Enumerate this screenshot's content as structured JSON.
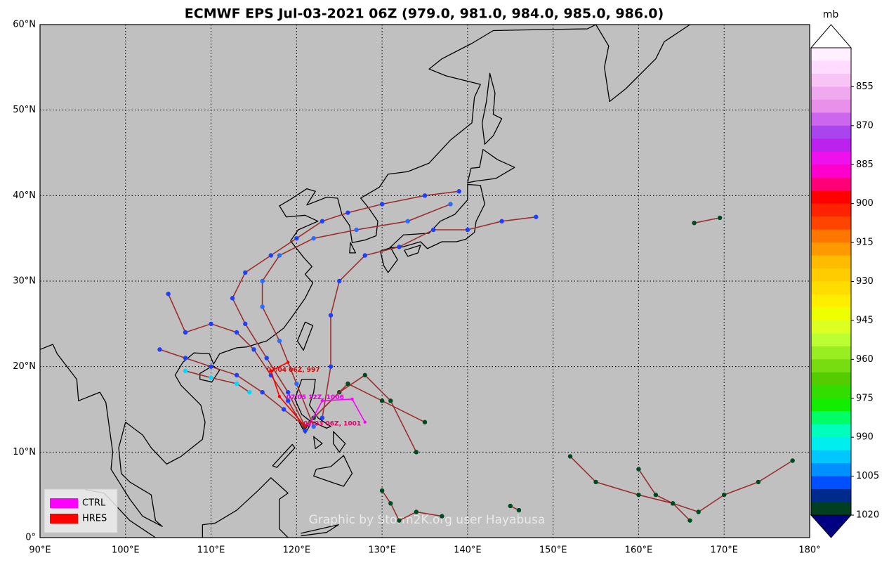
{
  "chart_data": {
    "type": "map",
    "title": "ECMWF EPS Jul-03-2021 06Z (979.0, 981.0, 984.0, 985.0, 986.0)",
    "xlim": [
      90,
      180
    ],
    "ylim": [
      0,
      60
    ],
    "xticks": [
      {
        "value": 90,
        "label": "90°E"
      },
      {
        "value": 100,
        "label": "100°E"
      },
      {
        "value": 110,
        "label": "110°E"
      },
      {
        "value": 120,
        "label": "120°E"
      },
      {
        "value": 130,
        "label": "130°E"
      },
      {
        "value": 140,
        "label": "140°E"
      },
      {
        "value": 150,
        "label": "150°E"
      },
      {
        "value": 160,
        "label": "160°E"
      },
      {
        "value": 170,
        "label": "170°E"
      },
      {
        "value": 180,
        "label": "180°"
      }
    ],
    "yticks": [
      {
        "value": 0,
        "label": "0°"
      },
      {
        "value": 10,
        "label": "10°N"
      },
      {
        "value": 20,
        "label": "20°N"
      },
      {
        "value": 30,
        "label": "30°N"
      },
      {
        "value": 40,
        "label": "40°N"
      },
      {
        "value": 50,
        "label": "50°N"
      },
      {
        "value": 60,
        "label": "60°N"
      }
    ],
    "grid": true,
    "track_line_color": "#9b2f2f",
    "tracks": [
      {
        "color": "#1f3fff",
        "lon": [
          121,
          118.5,
          116,
          113,
          110,
          107,
          104
        ],
        "lat": [
          13,
          15,
          17,
          19,
          20,
          21,
          22
        ]
      },
      {
        "color": "#1f3fff",
        "lon": [
          121,
          119,
          117,
          115,
          113,
          110,
          107,
          105
        ],
        "lat": [
          12.5,
          16,
          19,
          22,
          24,
          25,
          24,
          28.5
        ]
      },
      {
        "color": "#1f3fff",
        "lon": [
          121,
          119,
          116.5,
          114,
          112.5,
          114,
          117,
          120,
          123,
          126,
          130,
          135,
          139
        ],
        "lat": [
          13,
          17,
          21,
          25,
          28,
          31,
          33,
          35,
          37,
          38,
          39,
          40,
          40.5
        ]
      },
      {
        "color": "#2a6cff",
        "lon": [
          122,
          120,
          118,
          116,
          116,
          118,
          122,
          127,
          133,
          138
        ],
        "lat": [
          13,
          18,
          23,
          27,
          30,
          33,
          35,
          36,
          37,
          39
        ]
      },
      {
        "color": "#1f3fff",
        "lon": [
          123,
          124,
          124,
          125,
          128,
          132,
          136,
          140,
          144,
          148
        ],
        "lat": [
          14,
          20,
          26,
          30,
          33,
          34,
          36,
          36,
          37,
          37.5
        ]
      },
      {
        "color": "#004a20",
        "lon": [
          121,
          125,
          128,
          131,
          134
        ],
        "lat": [
          13,
          17,
          19,
          16,
          10
        ]
      },
      {
        "color": "#004a20",
        "lon": [
          122,
          126,
          130,
          135
        ],
        "lat": [
          14,
          18,
          16,
          13.5
        ]
      },
      {
        "color": "#004a20",
        "lon": [
          166.5,
          169.5
        ],
        "lat": [
          36.8,
          37.4
        ]
      },
      {
        "color": "#004a20",
        "lon": [
          152,
          155,
          160,
          164,
          167,
          170,
          174,
          178
        ],
        "lat": [
          9.5,
          6.5,
          5,
          4,
          3,
          5,
          6.5,
          9
        ]
      },
      {
        "color": "#004a20",
        "lon": [
          130,
          131,
          132,
          134,
          137
        ],
        "lat": [
          5.5,
          4,
          2,
          3,
          2.5
        ]
      },
      {
        "color": "#00d8ff",
        "lon": [
          107,
          110,
          113,
          114.5
        ],
        "lat": [
          19.5,
          18.7,
          18,
          17
        ]
      },
      {
        "color": "#004a20",
        "lon": [
          160,
          162,
          164,
          166
        ],
        "lat": [
          8,
          5,
          4,
          2
        ]
      },
      {
        "color": "#004a20",
        "lon": [
          145,
          146
        ],
        "lat": [
          3.7,
          3.2
        ]
      }
    ],
    "series": [
      {
        "name": "CTRL",
        "color": "#ff00ff",
        "lon": [
          121.5,
          123,
          126.5,
          128
        ],
        "lat": [
          13.2,
          16,
          16.2,
          13.5
        ]
      },
      {
        "name": "HRES",
        "color": "#ff0000",
        "lon": [
          121,
          118,
          117,
          119
        ],
        "lat": [
          13,
          16.5,
          19.5,
          20.5
        ]
      }
    ],
    "legend": "lower left",
    "annotations": [
      {
        "text": "07/04 06Z, 997",
        "color": "#e00000",
        "lon": 116.5,
        "lat": 19.6
      },
      {
        "text": "07/05 12Z, 1006",
        "color": "#e000e0",
        "lon": 118.8,
        "lat": 16.4
      },
      {
        "text": "07/03 06Z, 1001",
        "color": "#e0006a",
        "lon": 120.8,
        "lat": 13.3
      }
    ],
    "colorbar": {
      "label": "mb",
      "clim": [
        840,
        1020
      ],
      "ticks": [
        855,
        870,
        885,
        900,
        915,
        930,
        945,
        960,
        975,
        990,
        1005,
        1020
      ],
      "colors": [
        "#fff0ff",
        "#ffdcff",
        "#f7c4f5",
        "#f0a8ef",
        "#e890ea",
        "#cc66ee",
        "#aa44ee",
        "#bb22ee",
        "#ee11ee",
        "#ff00cc",
        "#ff0077",
        "#ff0000",
        "#ff2200",
        "#ff4400",
        "#ff7700",
        "#ff9900",
        "#ffbb00",
        "#ffcc00",
        "#ffdd00",
        "#ffee00",
        "#eeff00",
        "#ddff22",
        "#bbff33",
        "#99ee22",
        "#77dd11",
        "#55cc00",
        "#33dd00",
        "#11ee00",
        "#00ff66",
        "#00ffbb",
        "#00eeee",
        "#00c8ff",
        "#0090ff",
        "#0050ff",
        "#002a8c",
        "#004020"
      ],
      "under": "#000080",
      "over": "#ffffff"
    },
    "credit": "Graphic by Storm2K.org user Hayabusa"
  }
}
